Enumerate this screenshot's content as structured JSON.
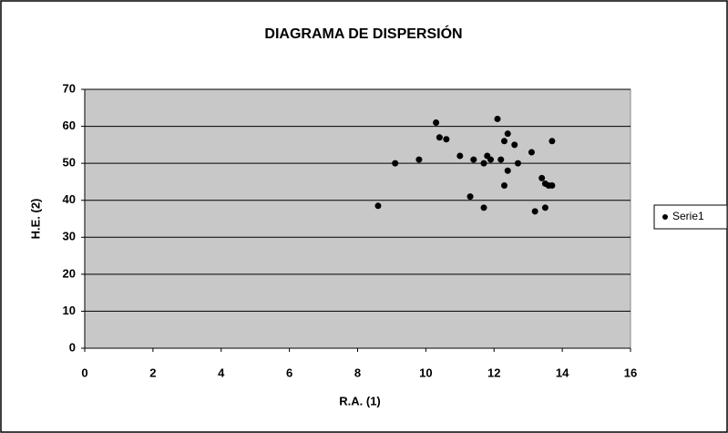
{
  "chart_data": {
    "type": "scatter",
    "title": "DIAGRAMA DE DISPERSIÓN",
    "x_label": "R.A. (1)",
    "y_label": "H.E. (2)",
    "series": [
      {
        "name": "Serie1",
        "color": "#000000",
        "x": [
          8.6,
          9.1,
          9.8,
          10.3,
          10.4,
          10.6,
          11.0,
          11.3,
          11.4,
          11.7,
          11.7,
          11.8,
          11.9,
          12.1,
          12.2,
          12.3,
          12.3,
          12.4,
          12.4,
          12.6,
          12.7,
          13.1,
          13.2,
          13.4,
          13.5,
          13.5,
          13.6,
          13.7,
          13.7
        ],
        "values": [
          38.5,
          50,
          51,
          61,
          57,
          56.5,
          52,
          41,
          51,
          38,
          50,
          52,
          51,
          62,
          51,
          56,
          44,
          48,
          58,
          55,
          50,
          53,
          37,
          46,
          38,
          44.5,
          44,
          44,
          56
        ]
      }
    ],
    "xlim": [
      0,
      16
    ],
    "xticks": [
      0,
      2,
      4,
      6,
      8,
      10,
      12,
      14,
      16
    ],
    "ylim": [
      0,
      70
    ],
    "yticks": [
      0,
      10,
      20,
      30,
      40,
      50,
      60,
      70
    ],
    "grid": true,
    "legend": "right"
  }
}
